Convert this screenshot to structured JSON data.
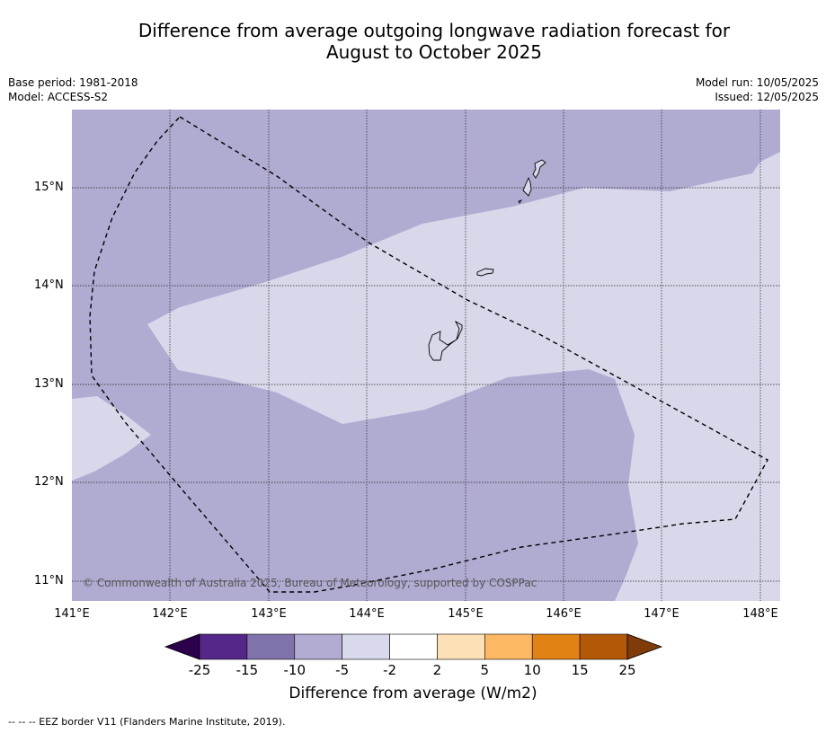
{
  "title_line1": "Difference from average outgoing longwave radiation forecast for",
  "title_line2": "August to October 2025",
  "meta_left": [
    "Base period: 1981-2018",
    "Model: ACCESS-S2"
  ],
  "meta_right": [
    "Model run: 10/05/2025",
    "Issued: 12/05/2025"
  ],
  "map": {
    "lat_labels": [
      "15°N",
      "14°N",
      "13°N",
      "12°N",
      "11°N"
    ],
    "lon_labels": [
      "141°E",
      "142°E",
      "143°E",
      "144°E",
      "145°E",
      "146°E",
      "147°E",
      "148°E"
    ],
    "copyright": "© Commonwealth of Australia 2025, Bureau of Meteorology, supported by COSPPac",
    "colors": {
      "minus_10_to_5": "#b0abd1",
      "minus_5_to_2": "#d8d8ea"
    }
  },
  "colorbar": {
    "ticks": [
      "-25",
      "-15",
      "-10",
      "-5",
      "-2",
      "2",
      "5",
      "10",
      "15",
      "25"
    ],
    "colors": [
      "#2d004b",
      "#542788",
      "#8073ac",
      "#b2abd2",
      "#d8daeb",
      "#ffffff",
      "#fee0b6",
      "#fdb863",
      "#e08214",
      "#b35806",
      "#7f3b08"
    ],
    "label": "Difference from average (W/m2)"
  },
  "footer": "--  --  -- EEZ border V11 (Flanders Marine Institute, 2019)."
}
